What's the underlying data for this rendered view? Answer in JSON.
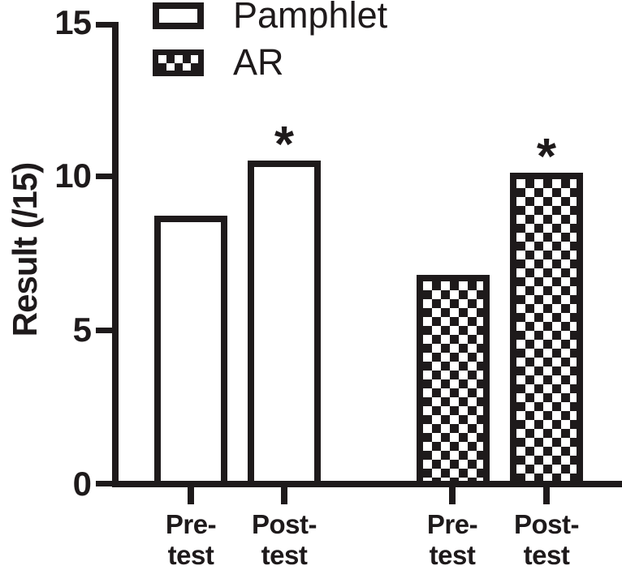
{
  "figure": {
    "background": "#ffffff",
    "ink_color": "#1e1a1b"
  },
  "legend": {
    "position": "top-left",
    "items": [
      {
        "label": "Pamphlet",
        "swatch": "white-outline"
      },
      {
        "label": "AR",
        "swatch": "checkerboard"
      }
    ]
  },
  "yaxis": {
    "title": "Result (/15)",
    "ticks": [
      "0",
      "5",
      "10",
      "15"
    ],
    "range": [
      0,
      15
    ]
  },
  "xaxis": {
    "labels": [
      {
        "line1": "Pre-",
        "line2": "test"
      },
      {
        "line1": "Post-",
        "line2": "test"
      },
      {
        "line1": "Pre-",
        "line2": "test"
      },
      {
        "line1": "Post-",
        "line2": "test"
      }
    ]
  },
  "significance_marker": "*",
  "chart_data": {
    "type": "bar",
    "title": "",
    "xlabel": "",
    "ylabel": "Result (/15)",
    "ylim": [
      0,
      15
    ],
    "yticks": [
      0,
      5,
      10,
      15
    ],
    "grid": false,
    "legend_position": "top-left",
    "categories": [
      "Pre-test",
      "Post-test",
      "Pre-test",
      "Post-test"
    ],
    "series": [
      {
        "name": "Pamphlet",
        "pattern": "white-outline",
        "categories": [
          "Pre-test",
          "Post-test"
        ],
        "values": [
          8.7,
          10.5
        ],
        "significant": [
          false,
          true
        ]
      },
      {
        "name": "AR",
        "pattern": "checkerboard",
        "categories": [
          "Pre-test",
          "Post-test"
        ],
        "values": [
          6.8,
          10.1
        ],
        "significant": [
          false,
          true
        ]
      }
    ],
    "annotations": [
      {
        "text": "*",
        "target": "Pamphlet Post-test",
        "meaning": "significant difference"
      },
      {
        "text": "*",
        "target": "AR Post-test",
        "meaning": "significant difference"
      }
    ]
  }
}
